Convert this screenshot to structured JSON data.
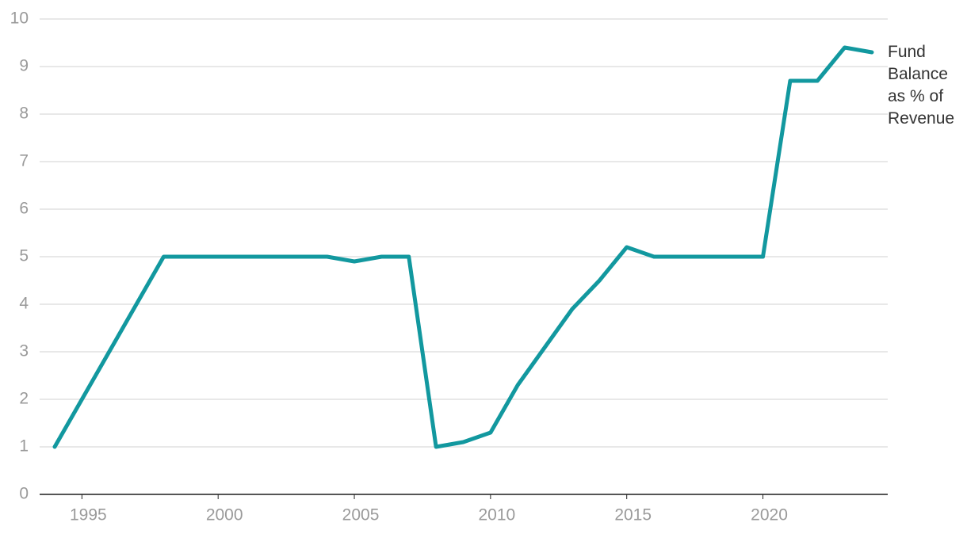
{
  "chart_data": {
    "type": "line",
    "x": [
      1994,
      1995,
      1996,
      1997,
      1998,
      1999,
      2000,
      2001,
      2002,
      2003,
      2004,
      2005,
      2006,
      2007,
      2008,
      2009,
      2010,
      2011,
      2012,
      2013,
      2014,
      2015,
      2016,
      2017,
      2018,
      2019,
      2020,
      2021,
      2022,
      2023,
      2024
    ],
    "series": [
      {
        "name": "Fund Balance as % of Revenue",
        "color": "#12989f",
        "values": [
          1,
          2,
          3,
          4,
          5,
          5,
          5,
          5,
          5,
          5,
          5,
          4.9,
          5,
          5,
          1,
          1.1,
          1.3,
          2.3,
          3.1,
          3.9,
          4.5,
          5.2,
          5,
          5,
          5,
          5,
          5,
          8.7,
          8.7,
          9.4,
          9.3
        ]
      }
    ],
    "xlim": [
      1994,
      2024
    ],
    "xticks": [
      1995,
      2000,
      2005,
      2010,
      2015,
      2020
    ],
    "ylim": [
      0,
      10
    ],
    "yticks": [
      0,
      1,
      2,
      3,
      4,
      5,
      6,
      7,
      8,
      9,
      10
    ],
    "grid": true
  }
}
